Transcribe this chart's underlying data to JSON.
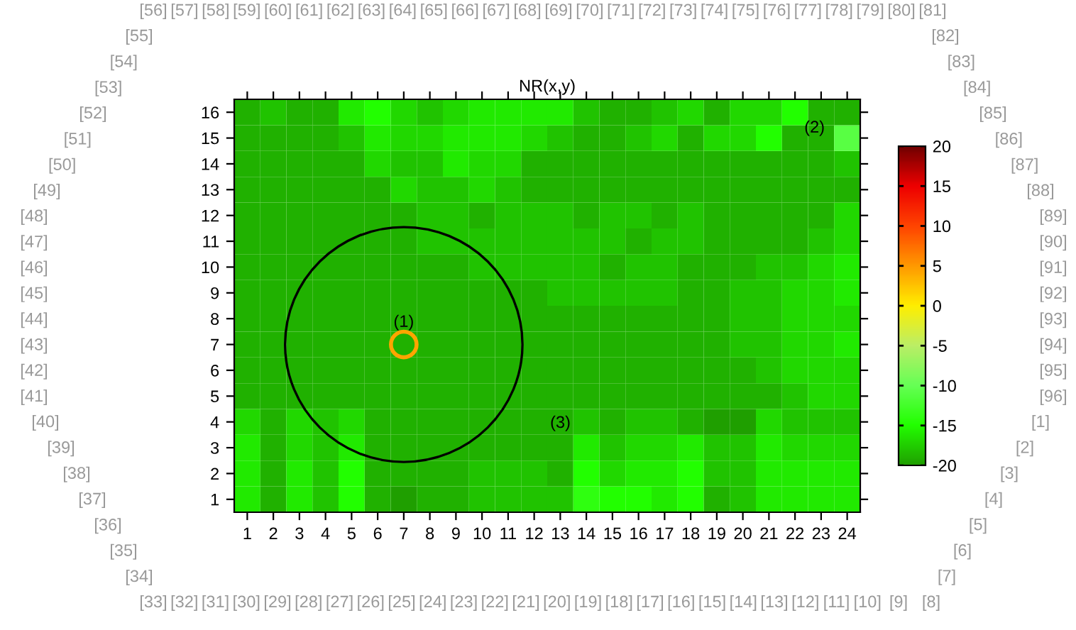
{
  "chart_data": {
    "type": "heatmap",
    "title": "NR(x,y)",
    "categories": [
      "1",
      "2",
      "3",
      "4",
      "5",
      "6",
      "7",
      "8",
      "9",
      "10",
      "11",
      "12",
      "13",
      "14",
      "15",
      "16",
      "17",
      "18",
      "19",
      "20",
      "21",
      "22",
      "23",
      "24"
    ],
    "y_categories": [
      "16",
      "15",
      "14",
      "13",
      "12",
      "11",
      "10",
      "9",
      "8",
      "7",
      "6",
      "5",
      "4",
      "3",
      "2",
      "1"
    ],
    "cells": [
      [
        -19,
        -18,
        -19,
        -19,
        -16,
        -15,
        -17,
        -18,
        -17,
        -16,
        -16,
        -16,
        -16,
        -18,
        -19,
        -19,
        -18,
        -17,
        -19,
        -17,
        -17,
        -15,
        -19,
        -19
      ],
      [
        -19,
        -19,
        -19,
        -19,
        -18,
        -16,
        -17,
        -17,
        -16,
        -16,
        -16,
        -17,
        -18,
        -19,
        -19,
        -18,
        -17,
        -19,
        -17,
        -17,
        -15,
        -19,
        -19,
        -11
      ],
      [
        -19,
        -19,
        -19,
        -19,
        -19,
        -17,
        -18,
        -18,
        -16,
        -17,
        -17,
        -19,
        -19,
        -19,
        -19,
        -19,
        -19,
        -19,
        -19,
        -19,
        -19,
        -19,
        -19,
        -18
      ],
      [
        -19,
        -19,
        -19,
        -19,
        -19,
        -19,
        -17,
        -18,
        -18,
        -17,
        -18,
        -19,
        -19,
        -19,
        -19,
        -19,
        -19,
        -19,
        -19,
        -19,
        -19,
        -19,
        -19,
        -19
      ],
      [
        -19,
        -19,
        -19,
        -19,
        -19,
        -19,
        -19,
        -18,
        -18,
        -19,
        -18,
        -18,
        -18,
        -19,
        -18,
        -18,
        -19,
        -18,
        -19,
        -19,
        -19,
        -19,
        -19,
        -17
      ],
      [
        -19,
        -19,
        -19,
        -19,
        -19,
        -19,
        -19,
        -18,
        -18,
        -18,
        -18,
        -18,
        -18,
        -18,
        -18,
        -19,
        -18,
        -18,
        -19,
        -19,
        -19,
        -19,
        -18,
        -17
      ],
      [
        -19,
        -19,
        -19,
        -19,
        -19,
        -19,
        -19,
        -19,
        -19,
        -18,
        -18,
        -18,
        -18,
        -18,
        -19,
        -18,
        -18,
        -19,
        -19,
        -19,
        -18,
        -18,
        -17,
        -16
      ],
      [
        -19,
        -19,
        -19,
        -19,
        -19,
        -19,
        -19,
        -19,
        -19,
        -19,
        -19,
        -19,
        -18,
        -18,
        -18,
        -18,
        -18,
        -19,
        -19,
        -18,
        -18,
        -17,
        -17,
        -16
      ],
      [
        -19,
        -19,
        -19,
        -19,
        -19,
        -19,
        -19,
        -19,
        -19,
        -19,
        -19,
        -19,
        -19,
        -19,
        -19,
        -19,
        -19,
        -19,
        -19,
        -18,
        -18,
        -17,
        -17,
        -17
      ],
      [
        -19,
        -19,
        -19,
        -19,
        -19,
        -19,
        -19,
        -19,
        -19,
        -19,
        -19,
        -19,
        -19,
        -19,
        -19,
        -19,
        -19,
        -19,
        -19,
        -18,
        -18,
        -17,
        -17,
        -16
      ],
      [
        -19,
        -19,
        -19,
        -19,
        -19,
        -19,
        -19,
        -19,
        -19,
        -19,
        -19,
        -19,
        -19,
        -19,
        -19,
        -19,
        -19,
        -19,
        -19,
        -19,
        -18,
        -17,
        -17,
        -17
      ],
      [
        -19,
        -19,
        -19,
        -19,
        -19,
        -19,
        -19,
        -19,
        -19,
        -19,
        -19,
        -19,
        -19,
        -19,
        -19,
        -19,
        -19,
        -19,
        -19,
        -19,
        -19,
        -18,
        -17,
        -17
      ],
      [
        -17,
        -19,
        -17,
        -18,
        -17,
        -19,
        -19,
        -19,
        -19,
        -19,
        -19,
        -19,
        -19,
        -18,
        -19,
        -18,
        -18,
        -19,
        -20,
        -20,
        -17,
        -18,
        -18,
        -18
      ],
      [
        -16,
        -19,
        -17,
        -18,
        -16,
        -19,
        -19,
        -19,
        -19,
        -19,
        -19,
        -19,
        -19,
        -16,
        -18,
        -17,
        -17,
        -16,
        -18,
        -18,
        -16,
        -17,
        -17,
        -17
      ],
      [
        -16,
        -19,
        -16,
        -18,
        -15,
        -19,
        -19,
        -19,
        -19,
        -18,
        -18,
        -18,
        -19,
        -15,
        -17,
        -16,
        -16,
        -15,
        -18,
        -18,
        -16,
        -16,
        -16,
        -16
      ],
      [
        -16,
        -19,
        -16,
        -18,
        -15,
        -19,
        -20,
        -19,
        -19,
        -18,
        -18,
        -18,
        -18,
        -14,
        -15,
        -15,
        -16,
        -15,
        -19,
        -18,
        -16,
        -16,
        -16,
        -16
      ]
    ],
    "clim": [
      -20,
      20
    ],
    "cticks": [
      -20,
      -15,
      -10,
      -5,
      0,
      5,
      10,
      15,
      20
    ],
    "annotations": [
      {
        "text": "(1)",
        "x": "7",
        "y": "7"
      },
      "(2)",
      "(3)",
      "[1]",
      "[2]",
      "[3]",
      "[4]",
      "[5]",
      "[6]",
      "[7]",
      "[8]",
      "[9]",
      "[10]",
      "[11]",
      "[12]",
      "[13]",
      "[14]",
      "[15]",
      "[16]",
      "[17]",
      "[18]",
      "[19]",
      "[20]",
      "[21]",
      "[22]",
      "[23]",
      "[24]",
      "[25]",
      "[26]",
      "[27]",
      "[28]",
      "[29]",
      "[30]",
      "[31]",
      "[32]",
      "[33]",
      "[34]",
      "[35]",
      "[36]",
      "[37]",
      "[38]",
      "[39]",
      "[40]",
      "[41]",
      "[42]",
      "[43]",
      "[44]",
      "[45]",
      "[46]",
      "[47]",
      "[48]",
      "[49]",
      "[50]",
      "[51]",
      "[52]",
      "[53]",
      "[54]",
      "[55]",
      "[56]",
      "[57]",
      "[58]",
      "[59]",
      "[60]",
      "[61]",
      "[62]",
      "[63]",
      "[64]",
      "[65]",
      "[66]",
      "[67]",
      "[68]",
      "[69]",
      "[70]",
      "[71]",
      "[72]",
      "[73]",
      "[74]",
      "[75]",
      "[76]",
      "[77]",
      "[78]",
      "[79]",
      "[80]",
      "[81]",
      "[82]",
      "[83]",
      "[84]",
      "[85]",
      "[86]",
      "[87]",
      "[88]",
      "[89]",
      "[90]",
      "[91]",
      "[92]",
      "[93]",
      "[94]",
      "[95]",
      "[96]"
    ]
  }
}
